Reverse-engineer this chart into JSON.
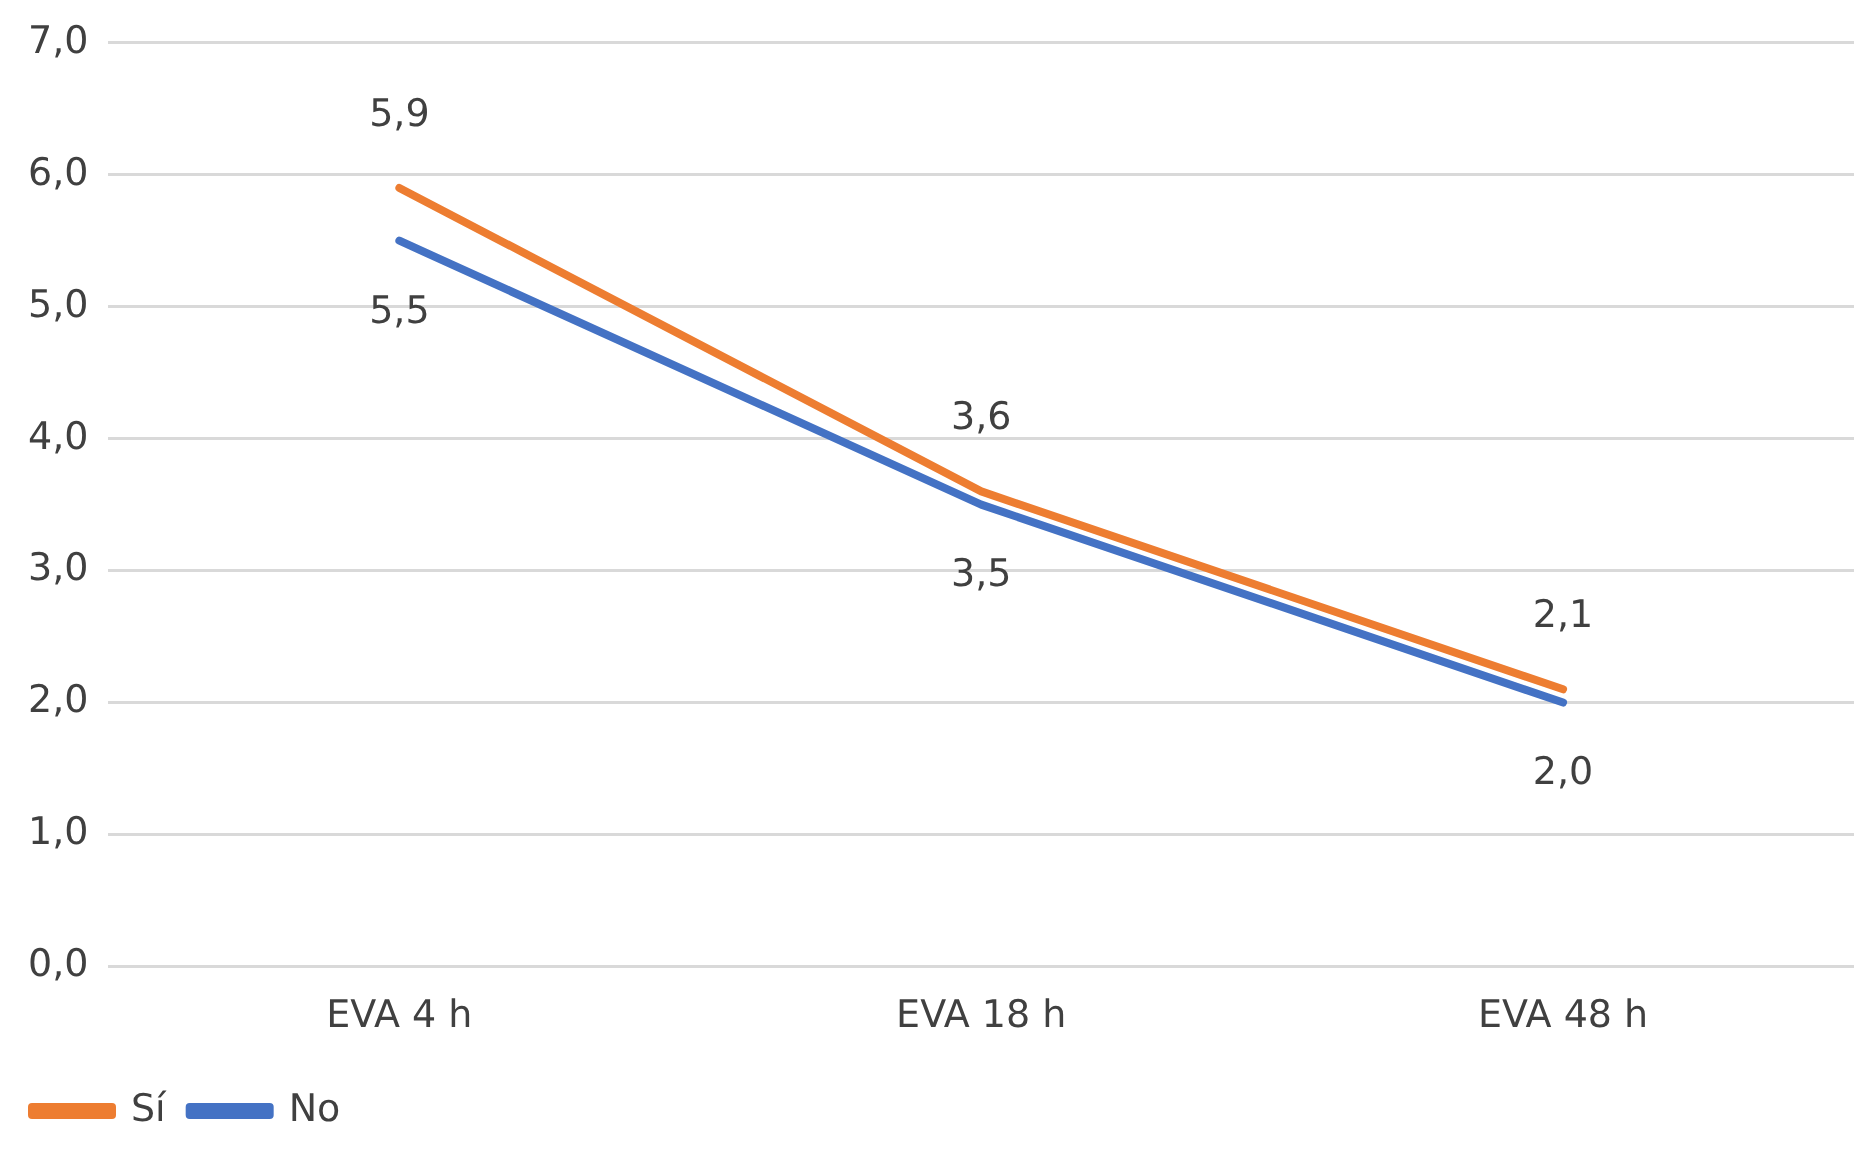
{
  "chart_data": {
    "type": "line",
    "categories": [
      "EVA 4 h",
      "EVA 18 h",
      "EVA 48 h"
    ],
    "series": [
      {
        "name": "Sí",
        "color": "#ed7d31",
        "values": [
          5.9,
          3.6,
          2.1
        ],
        "value_labels": [
          "5,9",
          "3,6",
          "2,1"
        ]
      },
      {
        "name": "No",
        "color": "#4472c4",
        "values": [
          5.5,
          3.5,
          2.0
        ],
        "value_labels": [
          "5,5",
          "3,5",
          "2,0"
        ]
      }
    ],
    "ylim": [
      0,
      7
    ],
    "yticks": [
      {
        "value": 0,
        "label": "0,0"
      },
      {
        "value": 1,
        "label": "1,0"
      },
      {
        "value": 2,
        "label": "2,0"
      },
      {
        "value": 3,
        "label": "3,0"
      },
      {
        "value": 4,
        "label": "4,0"
      },
      {
        "value": 5,
        "label": "5,0"
      },
      {
        "value": 6,
        "label": "6,0"
      },
      {
        "value": 7,
        "label": "7,0"
      }
    ],
    "grid": "y",
    "legend": "bottom left",
    "marker": "none",
    "line_style": "solid"
  }
}
